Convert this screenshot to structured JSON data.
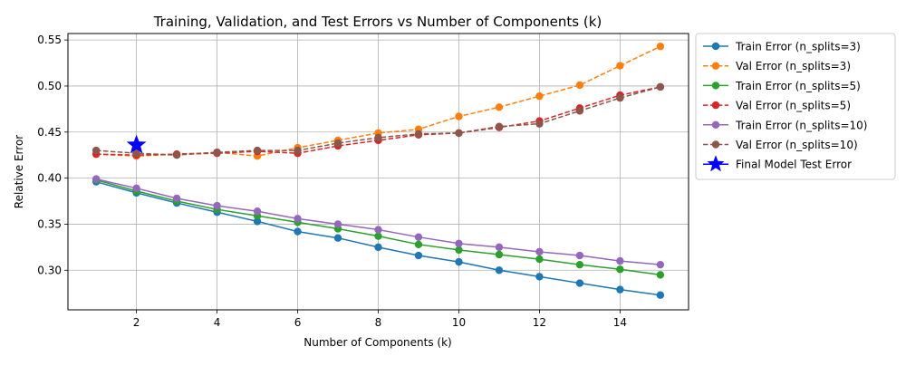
{
  "chart_data": {
    "type": "line",
    "title": "Training, Validation, and Test Errors vs Number of Components (k)",
    "xlabel": "Number of Components (k)",
    "ylabel": "Relative Error",
    "xlim": [
      0.3,
      15.7
    ],
    "ylim": [
      0.257,
      0.557
    ],
    "xticks": [
      2,
      4,
      6,
      8,
      10,
      12,
      14
    ],
    "yticks": [
      0.3,
      0.35,
      0.4,
      0.45,
      0.5,
      0.55
    ],
    "ytick_labels": [
      "0.30",
      "0.35",
      "0.40",
      "0.45",
      "0.50",
      "0.55"
    ],
    "grid": true,
    "legend_position": "outside-right",
    "x": [
      1,
      2,
      3,
      4,
      5,
      6,
      7,
      8,
      9,
      10,
      11,
      12,
      13,
      14,
      15
    ],
    "series": [
      {
        "name": "Train Error (n_splits=3)",
        "color": "#1f77b4",
        "dashed": false,
        "values": [
          0.396,
          0.384,
          0.373,
          0.363,
          0.353,
          0.342,
          0.335,
          0.325,
          0.316,
          0.309,
          0.3,
          0.293,
          0.286,
          0.279,
          0.273
        ]
      },
      {
        "name": "Val Error (n_splits=3)",
        "color": "#ff7f0e",
        "dashed": true,
        "values": [
          0.426,
          0.424,
          0.426,
          0.428,
          0.424,
          0.433,
          0.441,
          0.449,
          0.453,
          0.467,
          0.477,
          0.489,
          0.501,
          0.522,
          0.543
        ]
      },
      {
        "name": "Train Error (n_splits=5)",
        "color": "#2ca02c",
        "dashed": false,
        "values": [
          0.398,
          0.386,
          0.375,
          0.366,
          0.359,
          0.352,
          0.345,
          0.337,
          0.328,
          0.322,
          0.317,
          0.312,
          0.306,
          0.301,
          0.295
        ]
      },
      {
        "name": "Val Error (n_splits=5)",
        "color": "#d62728",
        "dashed": true,
        "values": [
          0.426,
          0.425,
          0.426,
          0.427,
          0.429,
          0.427,
          0.435,
          0.441,
          0.447,
          0.449,
          0.455,
          0.462,
          0.476,
          0.49,
          0.499
        ]
      },
      {
        "name": "Train Error (n_splits=10)",
        "color": "#9467bd",
        "dashed": false,
        "values": [
          0.399,
          0.389,
          0.378,
          0.37,
          0.364,
          0.356,
          0.35,
          0.344,
          0.336,
          0.329,
          0.325,
          0.32,
          0.316,
          0.31,
          0.306
        ]
      },
      {
        "name": "Val Error (n_splits=10)",
        "color": "#8c564b",
        "dashed": true,
        "values": [
          0.43,
          0.427,
          0.425,
          0.428,
          0.43,
          0.43,
          0.438,
          0.444,
          0.448,
          0.449,
          0.456,
          0.459,
          0.473,
          0.487,
          0.499
        ]
      }
    ],
    "final_point": {
      "name": "Final Model Test Error",
      "color": "#0000ff",
      "x": 2,
      "y": 0.436
    }
  }
}
